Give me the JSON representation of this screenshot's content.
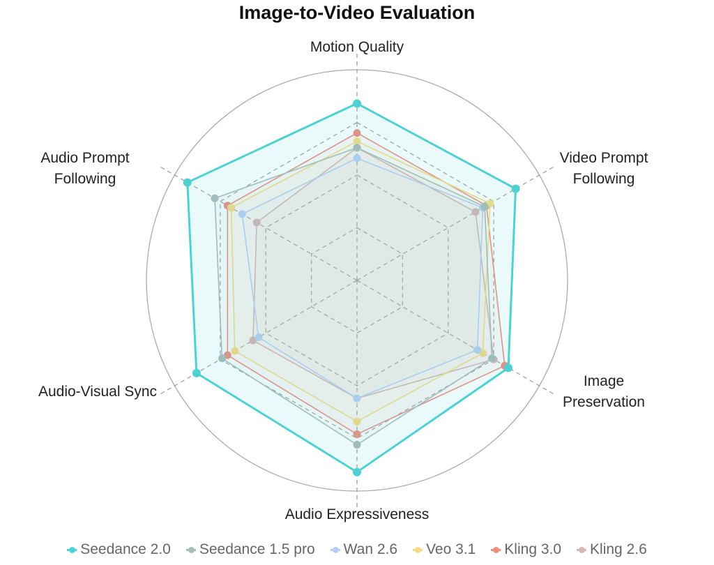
{
  "chart_data": {
    "type": "radar",
    "title": "Image-to-Video Evaluation",
    "categories": [
      "Motion Quality",
      "Video Prompt Following",
      "Image Preservation",
      "Audio Expressiveness",
      "Audio-Visual Sync",
      "Audio Prompt Following"
    ],
    "range": [
      0,
      100
    ],
    "grid": true,
    "legend_position": "bottom",
    "series": [
      {
        "name": "Seedance 2.0",
        "color": "#4fd1d1",
        "values": [
          84,
          87,
          83,
          91,
          88,
          93
        ]
      },
      {
        "name": "Seedance 1.5 pro",
        "color": "#a9bcbc",
        "values": [
          63,
          70,
          74,
          78,
          74,
          78
        ]
      },
      {
        "name": "Wan 2.6",
        "color": "#b7cff5",
        "values": [
          58,
          69,
          66,
          56,
          54,
          63
        ]
      },
      {
        "name": "Veo 3.1",
        "color": "#f5dc83",
        "values": [
          66,
          73,
          69,
          67,
          67,
          69
        ]
      },
      {
        "name": "Kling 3.0",
        "color": "#ec8e82",
        "values": [
          70,
          71,
          81,
          73,
          71,
          71
        ]
      },
      {
        "name": "Kling 2.6",
        "color": "#d8b6b8",
        "values": [
          63,
          65,
          75,
          56,
          57,
          55
        ]
      }
    ]
  }
}
